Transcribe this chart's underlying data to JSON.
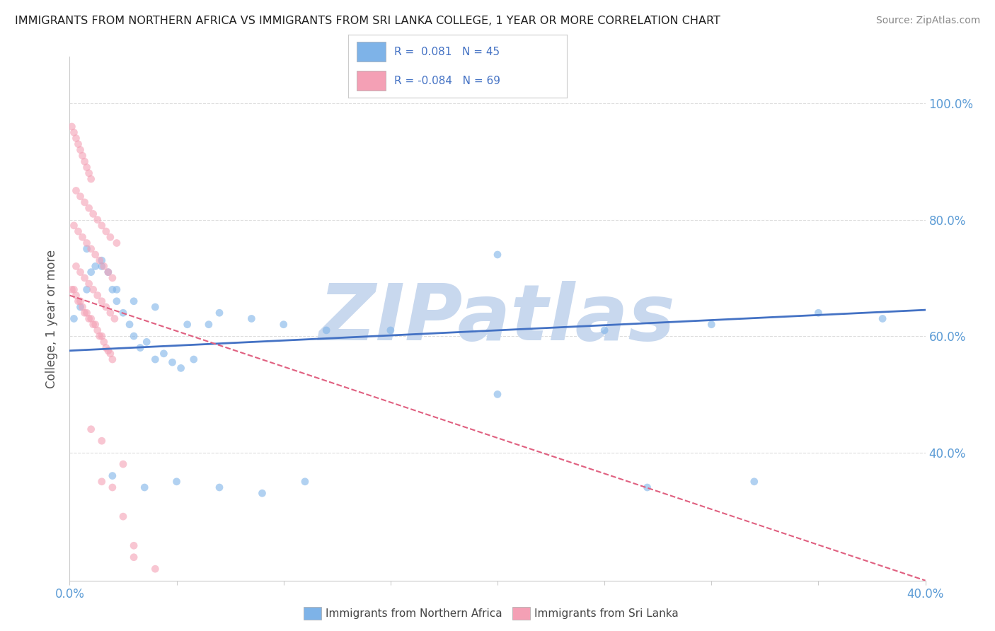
{
  "title": "IMMIGRANTS FROM NORTHERN AFRICA VS IMMIGRANTS FROM SRI LANKA COLLEGE, 1 YEAR OR MORE CORRELATION CHART",
  "source": "Source: ZipAtlas.com",
  "ylabel": "College, 1 year or more",
  "xlim": [
    0.0,
    0.4
  ],
  "ylim": [
    0.18,
    1.08
  ],
  "x_ticks": [
    0.0,
    0.05,
    0.1,
    0.15,
    0.2,
    0.25,
    0.3,
    0.35,
    0.4
  ],
  "y_ticks_right": [
    0.4,
    0.6,
    0.8,
    1.0
  ],
  "y_tick_labels_right": [
    "40.0%",
    "60.0%",
    "80.0%",
    "100.0%"
  ],
  "blue_color": "#7EB3E8",
  "pink_color": "#F4A0B5",
  "blue_line_color": "#4472C4",
  "pink_line_color": "#E06080",
  "watermark": "ZIPatlas",
  "watermark_color": "#C8D8EE",
  "legend_blue_label": "R =  0.081   N = 45",
  "legend_pink_label": "R = -0.084   N = 69",
  "legend_bottom_blue": "Immigrants from Northern Africa",
  "legend_bottom_pink": "Immigrants from Sri Lanka",
  "blue_R": 0.081,
  "blue_N": 45,
  "pink_R": -0.084,
  "pink_N": 69,
  "dot_size": 60,
  "dot_alpha": 0.6,
  "background_color": "#FFFFFF",
  "grid_color": "#DDDDDD",
  "blue_x": [
    0.002,
    0.005,
    0.008,
    0.01,
    0.012,
    0.015,
    0.018,
    0.02,
    0.022,
    0.025,
    0.028,
    0.03,
    0.033,
    0.036,
    0.04,
    0.044,
    0.048,
    0.052,
    0.058,
    0.065,
    0.008,
    0.015,
    0.022,
    0.03,
    0.04,
    0.055,
    0.07,
    0.085,
    0.1,
    0.12,
    0.02,
    0.035,
    0.05,
    0.07,
    0.09,
    0.11,
    0.15,
    0.2,
    0.25,
    0.3,
    0.2,
    0.35,
    0.38,
    0.32,
    0.27
  ],
  "blue_y": [
    0.63,
    0.65,
    0.68,
    0.71,
    0.72,
    0.73,
    0.71,
    0.68,
    0.66,
    0.64,
    0.62,
    0.6,
    0.58,
    0.59,
    0.56,
    0.57,
    0.555,
    0.545,
    0.56,
    0.62,
    0.75,
    0.72,
    0.68,
    0.66,
    0.65,
    0.62,
    0.64,
    0.63,
    0.62,
    0.61,
    0.36,
    0.34,
    0.35,
    0.34,
    0.33,
    0.35,
    0.61,
    0.74,
    0.61,
    0.62,
    0.5,
    0.64,
    0.63,
    0.35,
    0.34
  ],
  "pink_x": [
    0.001,
    0.002,
    0.003,
    0.004,
    0.005,
    0.006,
    0.007,
    0.008,
    0.009,
    0.01,
    0.011,
    0.012,
    0.013,
    0.014,
    0.015,
    0.016,
    0.017,
    0.018,
    0.019,
    0.02,
    0.003,
    0.005,
    0.007,
    0.009,
    0.011,
    0.013,
    0.015,
    0.017,
    0.019,
    0.021,
    0.002,
    0.004,
    0.006,
    0.008,
    0.01,
    0.012,
    0.014,
    0.016,
    0.018,
    0.02,
    0.003,
    0.005,
    0.007,
    0.009,
    0.011,
    0.013,
    0.015,
    0.017,
    0.019,
    0.022,
    0.001,
    0.002,
    0.003,
    0.004,
    0.005,
    0.006,
    0.007,
    0.008,
    0.009,
    0.01,
    0.015,
    0.02,
    0.025,
    0.03,
    0.04,
    0.01,
    0.015,
    0.025,
    0.03
  ],
  "pink_y": [
    0.68,
    0.68,
    0.67,
    0.66,
    0.66,
    0.65,
    0.64,
    0.64,
    0.63,
    0.63,
    0.62,
    0.62,
    0.61,
    0.6,
    0.6,
    0.59,
    0.58,
    0.575,
    0.57,
    0.56,
    0.72,
    0.71,
    0.7,
    0.69,
    0.68,
    0.67,
    0.66,
    0.65,
    0.64,
    0.63,
    0.79,
    0.78,
    0.77,
    0.76,
    0.75,
    0.74,
    0.73,
    0.72,
    0.71,
    0.7,
    0.85,
    0.84,
    0.83,
    0.82,
    0.81,
    0.8,
    0.79,
    0.78,
    0.77,
    0.76,
    0.96,
    0.95,
    0.94,
    0.93,
    0.92,
    0.91,
    0.9,
    0.89,
    0.88,
    0.87,
    0.35,
    0.34,
    0.29,
    0.24,
    0.2,
    0.44,
    0.42,
    0.38,
    0.22
  ],
  "blue_line_x0": 0.0,
  "blue_line_y0": 0.575,
  "blue_line_x1": 0.4,
  "blue_line_y1": 0.645,
  "pink_line_x0": 0.0,
  "pink_line_y0": 0.67,
  "pink_line_x1": 0.4,
  "pink_line_y1": 0.18
}
